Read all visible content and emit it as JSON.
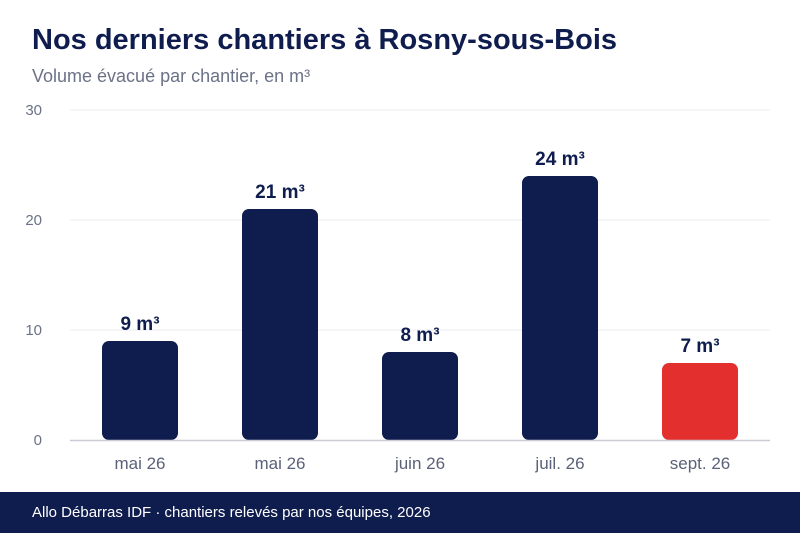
{
  "header": {
    "title": "Nos derniers chantiers à Rosny-sous-Bois",
    "subtitle": "Volume évacué par chantier, en m³"
  },
  "footer": {
    "text": "Allo Débarras IDF · chantiers relevés par nos équipes, 2026"
  },
  "colors": {
    "primary": "#0f1d4e",
    "highlight": "#e3302f",
    "axis_text": "#6b7287",
    "category_text": "#5b6178",
    "gridline": "#ececf1",
    "baseline": "#c9cbd6"
  },
  "chart_data": {
    "type": "bar",
    "categories": [
      "mai 26",
      "mai 26",
      "juin 26",
      "juil. 26",
      "sept. 26"
    ],
    "values": [
      9,
      21,
      8,
      24,
      7
    ],
    "data_labels": [
      "9 m³",
      "21 m³",
      "8 m³",
      "24 m³",
      "7 m³"
    ],
    "highlight_index": 4,
    "ylim": [
      0,
      30
    ],
    "yticks": [
      0,
      10,
      20,
      30
    ],
    "grid": true,
    "legend": "none"
  }
}
